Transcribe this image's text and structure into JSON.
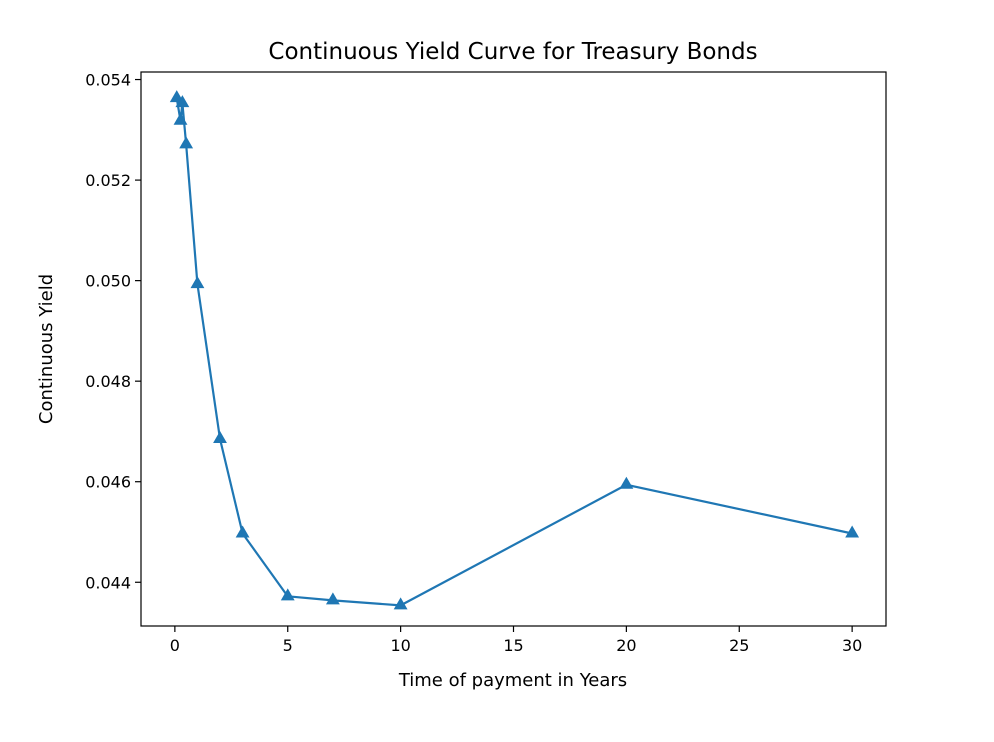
{
  "chart_data": {
    "type": "line",
    "title": "Continuous Yield Curve for Treasury Bonds",
    "xlabel": "Time of payment in Years",
    "ylabel": "Continuous Yield",
    "xlim": [
      -1.5,
      31.5
    ],
    "ylim": [
      0.04313,
      0.05415
    ],
    "x_ticks": [
      0,
      5,
      10,
      15,
      20,
      25,
      30
    ],
    "x_tick_labels": [
      "0",
      "5",
      "10",
      "15",
      "20",
      "25",
      "30"
    ],
    "y_ticks": [
      0.044,
      0.046,
      0.048,
      0.05,
      0.052,
      0.054
    ],
    "y_tick_labels": [
      "0.044",
      "0.046",
      "0.048",
      "0.050",
      "0.052",
      "0.054"
    ],
    "grid": false,
    "marker": "triangle-up",
    "series": [
      {
        "color": "#1f77b4",
        "x": [
          0.083,
          0.25,
          0.333,
          0.5,
          1,
          2,
          3,
          5,
          7,
          10,
          20,
          30
        ],
        "y": [
          0.05363,
          0.05318,
          0.05353,
          0.05271,
          0.04993,
          0.04685,
          0.04497,
          0.04372,
          0.04364,
          0.04354,
          0.04594,
          0.04497
        ]
      }
    ]
  }
}
